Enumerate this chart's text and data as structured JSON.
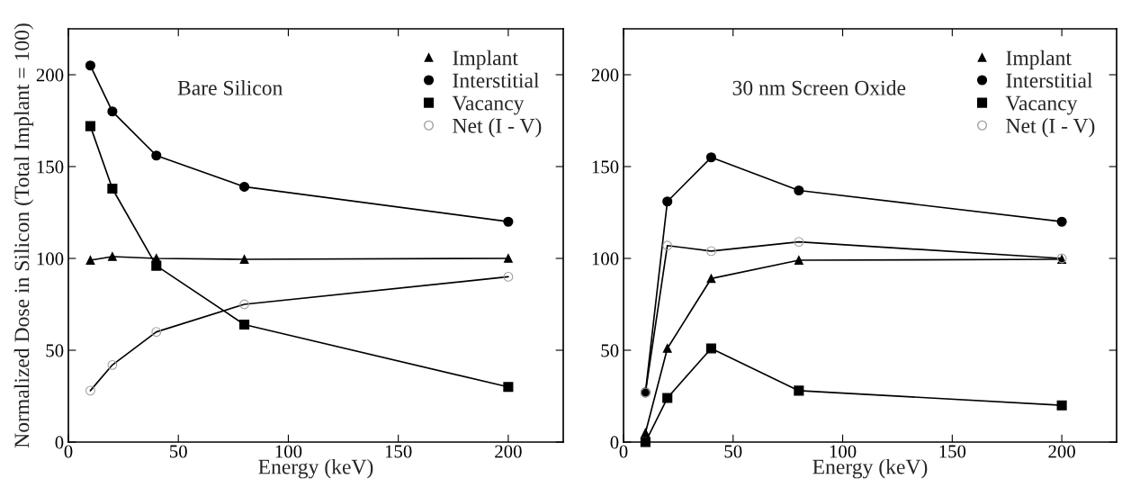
{
  "chart_data": [
    {
      "type": "line",
      "annotations": [
        "Bare Silicon"
      ],
      "xlabel": "Energy (keV)",
      "ylabel": "Normalized Dose in Silicon (Total Implant = 100)",
      "x": [
        10,
        20,
        40,
        80,
        200
      ],
      "xlim": [
        0,
        225
      ],
      "ylim": [
        0,
        225
      ],
      "xticks": [
        0,
        50,
        100,
        150,
        200
      ],
      "yticks": [
        0,
        50,
        100,
        150,
        200
      ],
      "legend": "top right",
      "grid": false,
      "series": [
        {
          "name": "Implant",
          "color": "#000000",
          "marker": "triangle",
          "values": [
            99,
            101,
            100,
            99.5,
            100
          ]
        },
        {
          "name": "Interstitial",
          "color": "#000000",
          "marker": "circle",
          "values": [
            205,
            180,
            156,
            139,
            120
          ]
        },
        {
          "name": "Vacancy",
          "color": "#000000",
          "marker": "square",
          "values": [
            172,
            138,
            96,
            64,
            30
          ]
        },
        {
          "name": "Net (I - V)",
          "color": "#a0a0a0",
          "marker": "circle",
          "values": [
            28,
            42,
            60,
            75,
            90
          ]
        }
      ]
    },
    {
      "type": "line",
      "annotations": [
        "30 nm Screen Oxide"
      ],
      "xlabel": "Energy (keV)",
      "x": [
        10,
        20,
        40,
        80,
        200
      ],
      "xlim": [
        0,
        225
      ],
      "ylim": [
        0,
        225
      ],
      "xticks": [
        0,
        50,
        100,
        150,
        200
      ],
      "yticks": [
        0,
        50,
        100,
        150,
        200
      ],
      "legend": "top right",
      "grid": false,
      "series": [
        {
          "name": "Implant",
          "color": "#000000",
          "marker": "triangle",
          "values": [
            5,
            51,
            89,
            99,
            99.5
          ]
        },
        {
          "name": "Interstitial",
          "color": "#000000",
          "marker": "circle",
          "values": [
            27,
            131,
            155,
            137,
            120
          ]
        },
        {
          "name": "Vacancy",
          "color": "#000000",
          "marker": "square",
          "values": [
            0,
            24,
            51,
            28,
            20
          ]
        },
        {
          "name": "Net (I - V)",
          "color": "#a0a0a0",
          "marker": "circle",
          "values": [
            27,
            107,
            104,
            109,
            100
          ]
        }
      ]
    }
  ]
}
